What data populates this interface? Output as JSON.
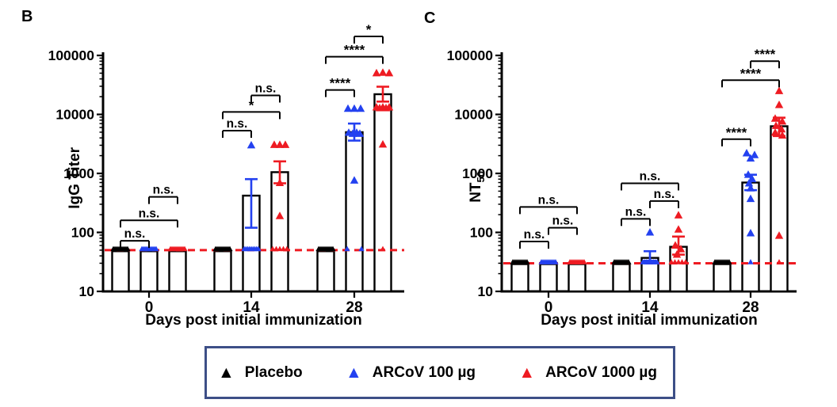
{
  "legend": {
    "items": [
      {
        "label": "Placebo",
        "color": "#000000",
        "marker": "triangle"
      },
      {
        "label": "ARCoV 100 µg",
        "color": "#2341f0",
        "marker": "triangle"
      },
      {
        "label": "ARCoV 1000 µg",
        "color": "#ee1b22",
        "marker": "triangle"
      }
    ],
    "border_color": "#3d4f87"
  },
  "chart_data": [
    {
      "type": "bar",
      "letter": "B",
      "ylabel_main": "IgG Titer",
      "ylabel_sub": "",
      "xlabel": "Days post initial immunization",
      "yscale": "log",
      "ylim": [
        10,
        100000
      ],
      "yticks": [
        10,
        100,
        1000,
        10000,
        100000
      ],
      "ytick_labels": [
        "10",
        "100",
        "1000",
        "10000",
        "100000"
      ],
      "categories": [
        "0",
        "14",
        "28"
      ],
      "groups": [
        "Placebo",
        "ARCoV 100 µg",
        "ARCoV 1000 µg"
      ],
      "group_colors": [
        "#000000",
        "#2341f0",
        "#ee1b22"
      ],
      "detection_limit": {
        "value": 50,
        "color": "#ee1b22",
        "style": "dashed"
      },
      "bars": [
        [
          48,
          48,
          48
        ],
        [
          48,
          420,
          1050
        ],
        [
          48,
          5000,
          22000
        ]
      ],
      "error_bars": [
        [
          null,
          null,
          null
        ],
        [
          null,
          [
            120,
            800
          ],
          [
            680,
            1600
          ]
        ],
        [
          null,
          [
            3600,
            7000
          ],
          [
            16500,
            29500
          ]
        ]
      ],
      "lod_point_counts": [
        [
          10,
          10,
          10
        ],
        [
          10,
          9,
          5
        ],
        [
          10,
          2,
          1
        ]
      ],
      "scatter_points": [
        [
          [],
          [],
          []
        ],
        [
          [],
          [
            [
              0,
              3000
            ]
          ],
          [
            [
              -7,
              3050
            ],
            [
              0,
              3050
            ],
            [
              7,
              3050
            ],
            [
              0,
              690
            ],
            [
              0,
              190
            ]
          ]
        ],
        [
          [],
          [
            [
              -8,
              12500
            ],
            [
              0,
              12500
            ],
            [
              8,
              12500
            ],
            [
              -7,
              4900
            ],
            [
              -2,
              4700
            ],
            [
              3,
              4900
            ],
            [
              7,
              4700
            ],
            [
              0,
              760
            ]
          ],
          [
            [
              -8,
              50000
            ],
            [
              0,
              51000
            ],
            [
              8,
              50000
            ],
            [
              -8,
              13200
            ],
            [
              -4,
              12800
            ],
            [
              0,
              13200
            ],
            [
              4,
              12800
            ],
            [
              8,
              13200
            ],
            [
              0,
              3100
            ]
          ]
        ]
      ],
      "significance": [
        [
          {
            "pair": [
              0,
              1
            ],
            "label": "n.s.",
            "y": 72
          },
          {
            "pair": [
              0,
              2
            ],
            "label": "n.s.",
            "y": 160
          },
          {
            "pair": [
              1,
              2
            ],
            "label": "n.s.",
            "y": 400
          }
        ],
        [
          {
            "pair": [
              0,
              1
            ],
            "label": "n.s.",
            "y": 5300
          },
          {
            "pair": [
              0,
              2
            ],
            "label": "*",
            "y": 11000
          },
          {
            "pair": [
              1,
              2
            ],
            "label": "n.s.",
            "y": 21000
          }
        ],
        [
          {
            "pair": [
              0,
              1
            ],
            "label": "****",
            "y": 26000
          },
          {
            "pair": [
              0,
              2
            ],
            "label": "****",
            "y": 95000
          },
          {
            "pair": [
              1,
              2
            ],
            "label": "*",
            "y": 210000
          }
        ]
      ]
    },
    {
      "type": "bar",
      "letter": "C",
      "ylabel_main": "NT",
      "ylabel_sub": "50",
      "xlabel": "Days post initial immunization",
      "yscale": "log",
      "ylim": [
        10,
        100000
      ],
      "yticks": [
        10,
        100,
        1000,
        10000,
        100000
      ],
      "ytick_labels": [
        "10",
        "100",
        "1000",
        "10000",
        "100000"
      ],
      "categories": [
        "0",
        "14",
        "28"
      ],
      "groups": [
        "Placebo",
        "ARCoV 100 µg",
        "ARCoV 1000 µg"
      ],
      "group_colors": [
        "#000000",
        "#2341f0",
        "#ee1b22"
      ],
      "detection_limit": {
        "value": 30,
        "color": "#ee1b22",
        "style": "dashed"
      },
      "bars": [
        [
          29,
          29,
          29
        ],
        [
          29,
          37,
          57
        ],
        [
          29,
          700,
          6300
        ]
      ],
      "error_bars": [
        [
          null,
          null,
          null
        ],
        [
          null,
          [
            33,
            48
          ],
          [
            42,
            85
          ]
        ],
        [
          null,
          [
            520,
            950
          ],
          [
            4300,
            8800
          ]
        ]
      ],
      "lod_point_counts": [
        [
          10,
          10,
          10
        ],
        [
          10,
          9,
          5
        ],
        [
          10,
          1,
          1
        ]
      ],
      "scatter_points": [
        [
          [],
          [],
          []
        ],
        [
          [],
          [
            [
              0,
              100
            ]
          ],
          [
            [
              0,
              195
            ],
            [
              0,
              112
            ],
            [
              -4,
              60
            ],
            [
              3,
              52
            ],
            [
              -2,
              42
            ]
          ]
        ],
        [
          [],
          [
            [
              -5,
              2200
            ],
            [
              5,
              2050
            ],
            [
              0,
              1800
            ],
            [
              -3,
              950
            ],
            [
              2,
              800
            ],
            [
              -2,
              680
            ],
            [
              0,
              560
            ],
            [
              0,
              370
            ],
            [
              0,
              97
            ]
          ],
          [
            [
              0,
              25000
            ],
            [
              0,
              14500
            ],
            [
              -5,
              8500
            ],
            [
              4,
              7600
            ],
            [
              -4,
              6400
            ],
            [
              3,
              5600
            ],
            [
              -5,
              4900
            ],
            [
              4,
              4400
            ],
            [
              0,
              88
            ]
          ]
        ]
      ],
      "significance": [
        [
          {
            "pair": [
              0,
              1
            ],
            "label": "n.s.",
            "y": 70
          },
          {
            "pair": [
              1,
              2
            ],
            "label": "n.s.",
            "y": 120
          },
          {
            "pair": [
              0,
              2
            ],
            "label": "n.s.",
            "y": 270
          }
        ],
        [
          {
            "pair": [
              0,
              1
            ],
            "label": "n.s.",
            "y": 170
          },
          {
            "pair": [
              1,
              2
            ],
            "label": "n.s.",
            "y": 340
          },
          {
            "pair": [
              0,
              2
            ],
            "label": "n.s.",
            "y": 680
          }
        ],
        [
          {
            "pair": [
              0,
              1
            ],
            "label": "****",
            "y": 3800
          },
          {
            "pair": [
              0,
              2
            ],
            "label": "****",
            "y": 38000
          },
          {
            "pair": [
              1,
              2
            ],
            "label": "****",
            "y": 80000
          }
        ]
      ]
    }
  ]
}
